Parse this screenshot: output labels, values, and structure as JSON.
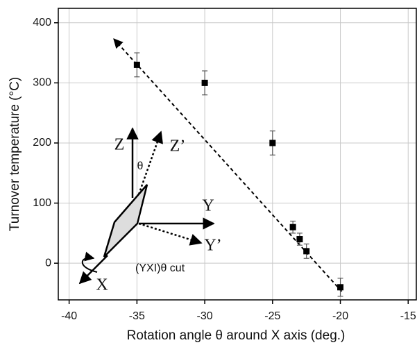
{
  "chart_data": {
    "type": "scatter",
    "x_label": "Rotation angle θ around X axis (deg.)",
    "y_label": "Turnover temperature (°C)",
    "xlim": [
      -40.8,
      -14.4
    ],
    "ylim": [
      -61,
      424
    ],
    "xticks": [
      -40,
      -35,
      -30,
      -25,
      -20,
      -15
    ],
    "yticks": [
      0,
      100,
      200,
      300,
      400
    ],
    "grid": true,
    "series": [
      {
        "color": "#000000",
        "x": [
          -35,
          -30,
          -25,
          -23.5,
          -23,
          -22.5,
          -20
        ],
        "values": [
          330,
          300,
          200,
          60,
          40,
          20,
          -40
        ],
        "errors": [
          20,
          20,
          20,
          10,
          10,
          12,
          15
        ]
      }
    ],
    "trend_line": {
      "color": "#000000",
      "x": [
        -36.7,
        -19.9
      ],
      "values": [
        373,
        -47
      ]
    },
    "annotations": [
      "Z",
      "Z’",
      "θ",
      "Y",
      "Y’",
      "X",
      "(YXI)θ cut"
    ]
  }
}
